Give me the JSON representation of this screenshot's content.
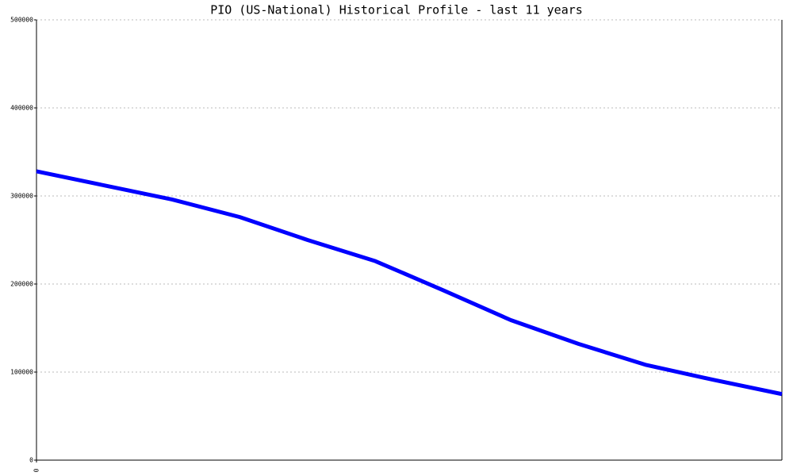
{
  "chart_data": {
    "type": "line",
    "title": "PIO (US-National) Historical Profile - last 11 years",
    "x": [
      0,
      1,
      2,
      3,
      4,
      5,
      6,
      7,
      8,
      9,
      10,
      11
    ],
    "series": [
      {
        "color": "#0000ff",
        "values": [
          328000,
          312000,
          296000,
          276000,
          250000,
          226000,
          193000,
          159000,
          132000,
          108000,
          91000,
          75000
        ]
      }
    ],
    "xlim": [
      0,
      11
    ],
    "xticks": [
      0
    ],
    "ylim": [
      0,
      500000
    ],
    "yticks": [
      0,
      100000,
      200000,
      300000,
      400000,
      500000
    ],
    "grid": true
  }
}
